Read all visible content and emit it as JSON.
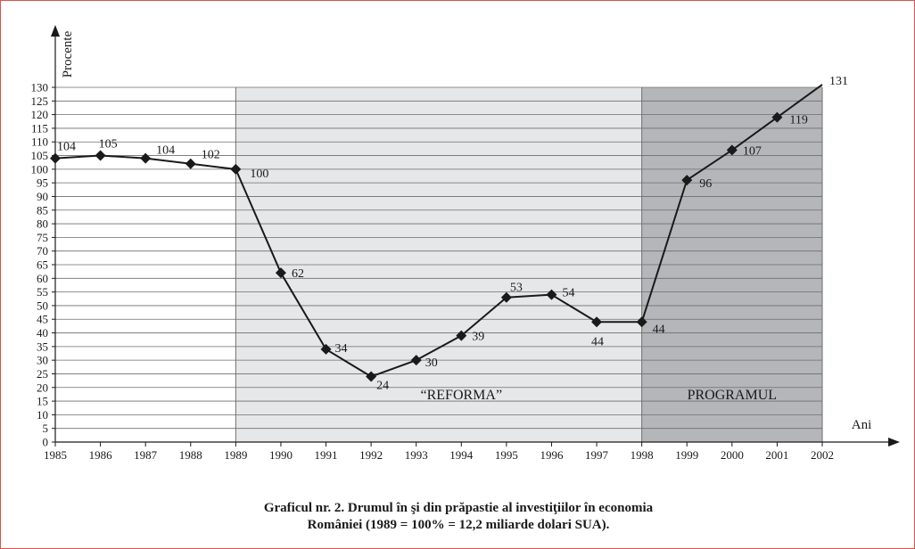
{
  "chart_data": {
    "type": "line",
    "ylabel": "Procente",
    "xlabel": "Ani",
    "x": [
      1985,
      1986,
      1987,
      1988,
      1989,
      1990,
      1991,
      1992,
      1993,
      1994,
      1995,
      1996,
      1997,
      1998,
      1999,
      2000,
      2001,
      2002
    ],
    "y": [
      104,
      105,
      104,
      102,
      100,
      62,
      34,
      24,
      30,
      39,
      53,
      54,
      44,
      44,
      96,
      107,
      119,
      131
    ],
    "point_labels": [
      "104",
      "105",
      "104",
      "102",
      "100",
      "62",
      "34",
      "24",
      "30",
      "39",
      "53",
      "54",
      "44",
      "44",
      "96",
      "107",
      "119",
      "131"
    ],
    "ylim": [
      0,
      130
    ],
    "y_ticks": [
      0,
      5,
      10,
      15,
      20,
      25,
      30,
      35,
      40,
      45,
      50,
      55,
      60,
      65,
      70,
      75,
      80,
      85,
      90,
      95,
      100,
      105,
      110,
      115,
      120,
      125,
      130
    ],
    "x_ticks": [
      "1985",
      "1986",
      "1987",
      "1988",
      "1989",
      "1990",
      "1991",
      "1992",
      "1993",
      "1994",
      "1995",
      "1996",
      "1997",
      "1998",
      "1999",
      "2000",
      "2001",
      "2002"
    ],
    "grid": true,
    "regions": [
      {
        "label": "“REFORMA”",
        "from": 1989,
        "to": 1998,
        "color": "#e6e7e9"
      },
      {
        "label": "PROGRAMUL",
        "from": 1998,
        "to": 2002,
        "color": "#b5b6b9"
      }
    ],
    "caption_line1": "Graficul nr. 2. Drumul în şi din prăpastie al investiţiilor în economia",
    "caption_line2": "României (1989 = 100% = 12,2 miliarde dolari SUA)."
  }
}
